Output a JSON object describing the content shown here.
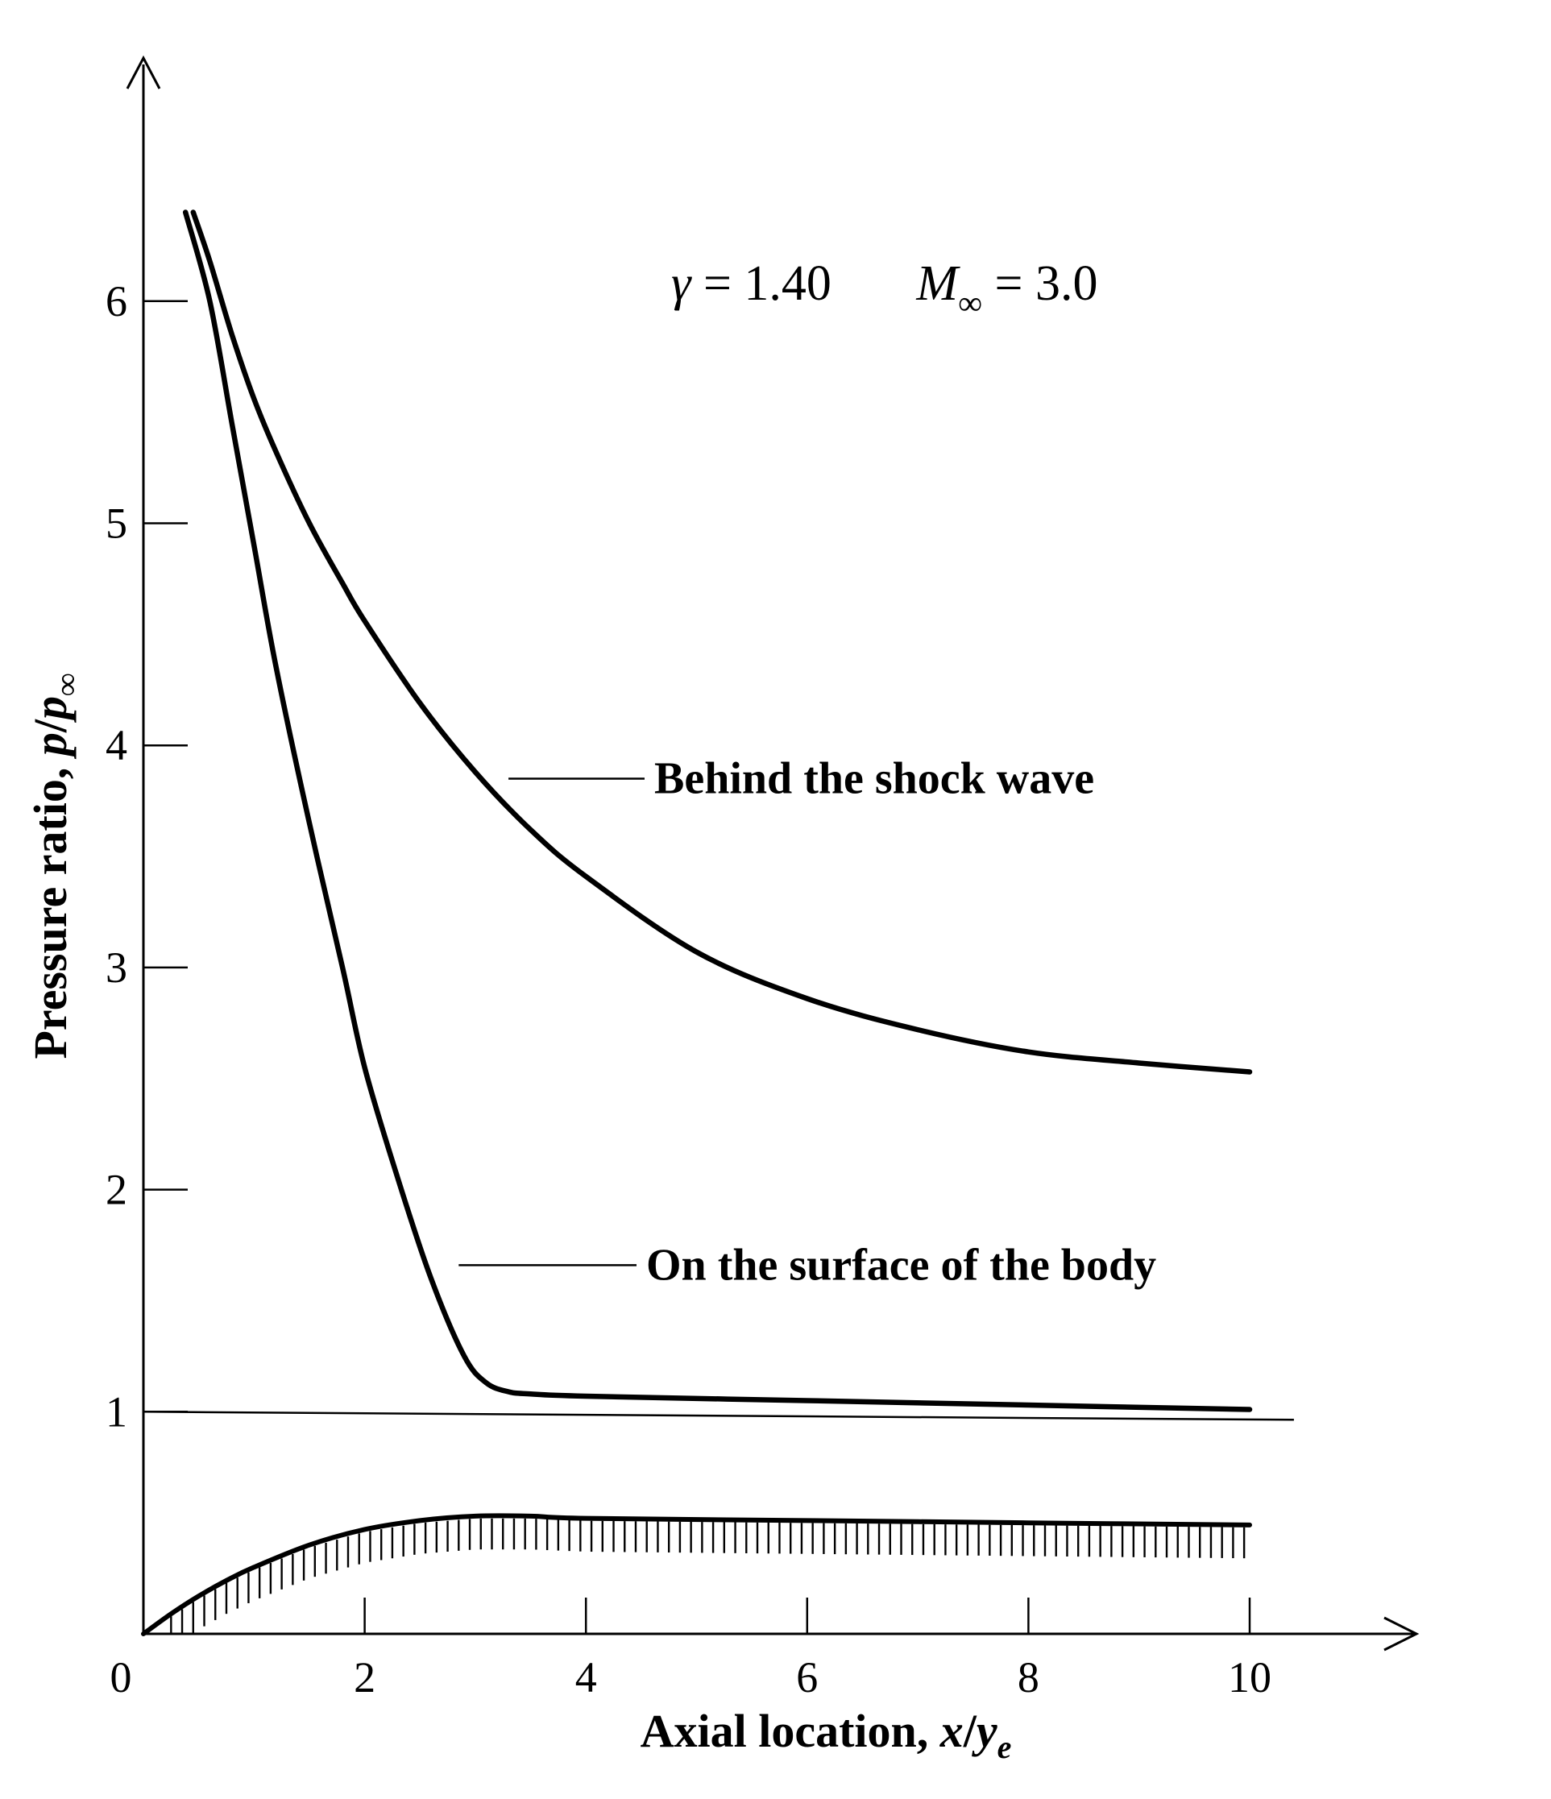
{
  "chart_data": {
    "type": "line",
    "xlabel": {
      "prefix": "Axial location, ",
      "var": "x",
      "slash": "/",
      "var2": "y",
      "sub": "e"
    },
    "ylabel": {
      "prefix": "Pressure ratio, ",
      "var": "p",
      "slash": "/",
      "var2": "p",
      "sub": "∞"
    },
    "xlim": [
      0,
      10.5
    ],
    "ylim": [
      0,
      6.5
    ],
    "x_ticks": [
      {
        "value": 0,
        "label": "0"
      },
      {
        "value": 2,
        "label": "2"
      },
      {
        "value": 4,
        "label": "4"
      },
      {
        "value": 6,
        "label": "6"
      },
      {
        "value": 8,
        "label": "8"
      },
      {
        "value": 10,
        "label": "10"
      }
    ],
    "y_ticks": [
      {
        "value": 1,
        "label": "1"
      },
      {
        "value": 2,
        "label": "2"
      },
      {
        "value": 3,
        "label": "3"
      },
      {
        "value": 4,
        "label": "4"
      },
      {
        "value": 5,
        "label": "5"
      },
      {
        "value": 6,
        "label": "6"
      }
    ],
    "parameters": {
      "gamma": {
        "symbol": "γ",
        "eq": " = 1.40"
      },
      "mach": {
        "symbol": "M",
        "sub": "∞",
        "eq": " = 3.0"
      }
    },
    "reference_line": {
      "y": 1.0,
      "x_end": 10.4
    },
    "series": [
      {
        "name": "Behind the shock wave",
        "x": [
          0.45,
          0.6,
          0.8,
          1.0,
          1.2,
          1.5,
          1.8,
          2.0,
          2.5,
          3.0,
          3.5,
          4.0,
          5.0,
          6.0,
          7.0,
          8.0,
          9.0,
          10.0
        ],
        "y": [
          6.4,
          6.18,
          5.85,
          5.56,
          5.32,
          5.0,
          4.73,
          4.56,
          4.19,
          3.88,
          3.62,
          3.41,
          3.07,
          2.86,
          2.72,
          2.62,
          2.57,
          2.53
        ],
        "label_anchor": {
          "x": 3.3,
          "y": 3.85
        }
      },
      {
        "name": "On the surface of the body",
        "x": [
          0.38,
          0.6,
          0.8,
          1.0,
          1.2,
          1.5,
          1.8,
          2.0,
          2.3,
          2.6,
          2.9,
          3.1,
          3.3,
          3.5,
          4.0,
          6.0,
          8.0,
          10.0
        ],
        "y": [
          6.4,
          6.0,
          5.45,
          4.9,
          4.35,
          3.65,
          3.0,
          2.55,
          2.05,
          1.6,
          1.25,
          1.13,
          1.09,
          1.08,
          1.07,
          1.05,
          1.03,
          1.01
        ],
        "label_anchor": {
          "x": 2.85,
          "y": 1.66
        }
      }
    ],
    "body_contour": {
      "x": [
        0.0,
        0.25,
        0.5,
        0.75,
        1.0,
        1.5,
        2.0,
        2.5,
        3.0,
        3.5,
        4.0,
        6.0,
        8.0,
        10.0
      ],
      "y": [
        0.0,
        0.09,
        0.17,
        0.24,
        0.3,
        0.4,
        0.47,
        0.51,
        0.53,
        0.53,
        0.52,
        0.51,
        0.5,
        0.49
      ]
    }
  }
}
